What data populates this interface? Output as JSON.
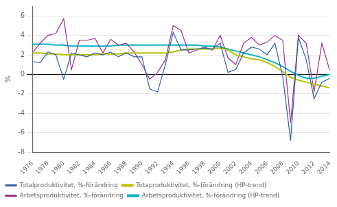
{
  "chart_data": {
    "type": "line",
    "ylabel": "%",
    "x": [
      1976,
      1977,
      1978,
      1979,
      1980,
      1981,
      1982,
      1983,
      1984,
      1985,
      1986,
      1987,
      1988,
      1989,
      1990,
      1991,
      1992,
      1993,
      1994,
      1995,
      1996,
      1997,
      1998,
      1999,
      2000,
      2001,
      2002,
      2003,
      2004,
      2005,
      2006,
      2007,
      2008,
      2009,
      2010,
      2011,
      2012,
      2013,
      2014
    ],
    "series": [
      {
        "name": "Totalproduktivitet, %-förändring",
        "color": "#2e5fa3",
        "values": [
          1.3,
          1.2,
          2.3,
          2.0,
          -0.5,
          2.2,
          2.0,
          1.8,
          2.2,
          2.0,
          2.3,
          1.8,
          2.2,
          1.8,
          1.8,
          -1.5,
          -1.8,
          1.0,
          4.3,
          2.5,
          2.5,
          2.6,
          2.7,
          2.6,
          3.2,
          0.2,
          0.5,
          2.2,
          2.8,
          2.6,
          2.0,
          3.2,
          -0.2,
          -6.8,
          3.8,
          1.5,
          -2.5,
          -0.8,
          -0.4
        ]
      },
      {
        "name": "Totaproduktivitet, %-förändring (HP-trend)",
        "color": "#b5c200",
        "values": [
          2.2,
          2.2,
          2.1,
          2.1,
          2.0,
          2.0,
          2.0,
          2.0,
          2.0,
          2.1,
          2.1,
          2.1,
          2.2,
          2.2,
          2.2,
          2.2,
          2.2,
          2.2,
          2.3,
          2.5,
          2.6,
          2.6,
          2.6,
          2.6,
          2.7,
          2.5,
          2.0,
          1.8,
          1.6,
          1.5,
          1.2,
          0.8,
          0.3,
          -0.3,
          -0.6,
          -0.8,
          -1.0,
          -1.2,
          -1.4
        ]
      },
      {
        "name": "Arbetsproduktivitet, %-förändring",
        "color": "#9b2d8e",
        "values": [
          2.2,
          3.2,
          4.0,
          4.2,
          5.7,
          0.5,
          3.5,
          3.5,
          3.7,
          2.2,
          3.6,
          3.0,
          3.2,
          2.3,
          1.0,
          -0.5,
          0.2,
          1.5,
          5.0,
          4.5,
          2.2,
          2.5,
          2.8,
          2.5,
          4.0,
          1.7,
          1.0,
          3.2,
          3.8,
          3.0,
          3.3,
          4.0,
          3.5,
          -5.0,
          4.0,
          3.2,
          -1.8,
          3.2,
          0.4
        ]
      },
      {
        "name": "Arbetsproduktivitet, %-förändring (HP-trend)",
        "color": "#00b4c8",
        "values": [
          3.1,
          3.1,
          3.1,
          3.0,
          3.0,
          2.9,
          2.9,
          2.9,
          2.9,
          2.9,
          2.9,
          3.0,
          3.0,
          3.0,
          3.0,
          3.0,
          3.0,
          3.0,
          3.0,
          3.0,
          3.0,
          3.0,
          2.9,
          2.9,
          2.8,
          2.6,
          2.4,
          2.2,
          2.0,
          1.8,
          1.5,
          1.2,
          0.8,
          0.3,
          -0.1,
          -0.4,
          -0.4,
          -0.2,
          0.0
        ]
      }
    ],
    "xlim": [
      1976,
      2014
    ],
    "xticks": [
      1976,
      1978,
      1980,
      1982,
      1984,
      1986,
      1988,
      1990,
      1992,
      1994,
      1996,
      1998,
      2000,
      2002,
      2004,
      2006,
      2008,
      2010,
      2012,
      2014
    ],
    "ylim": [
      -8,
      7
    ],
    "yticks": [
      -8,
      -6,
      -4,
      -2,
      0,
      2,
      4,
      6
    ],
    "grid": "y",
    "legend": "bottom"
  }
}
